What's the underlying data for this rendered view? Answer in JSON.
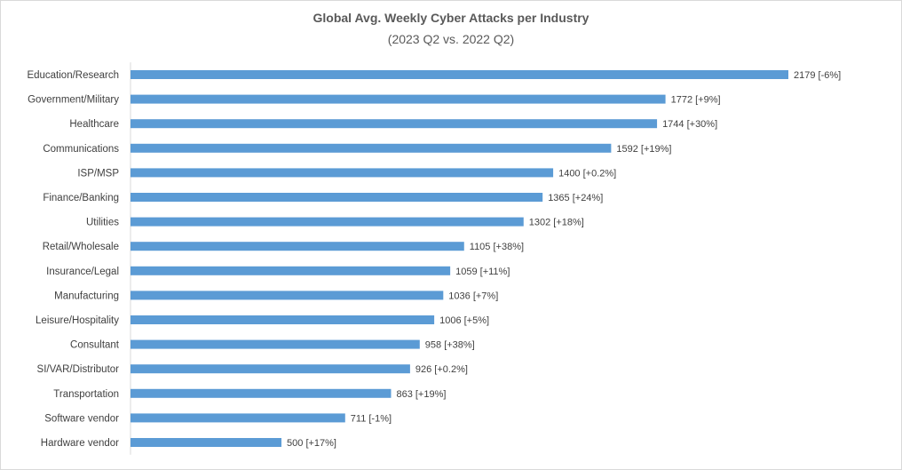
{
  "chart_data": {
    "type": "bar",
    "orientation": "horizontal",
    "title": "Global Avg. Weekly Cyber Attacks per Industry",
    "subtitle": "(2023 Q2 vs. 2022 Q2)",
    "categories": [
      "Education/Research",
      "Government/Military",
      "Healthcare",
      "Communications",
      "ISP/MSP",
      "Finance/Banking",
      "Utilities",
      "Retail/Wholesale",
      "Insurance/Legal",
      "Manufacturing",
      "Leisure/Hospitality",
      "Consultant",
      "SI/VAR/Distributor",
      "Transportation",
      "Software vendor",
      "Hardware vendor"
    ],
    "values": [
      2179,
      1772,
      1744,
      1592,
      1400,
      1365,
      1302,
      1105,
      1059,
      1036,
      1006,
      958,
      926,
      863,
      711,
      500
    ],
    "changes": [
      "-6%",
      "+9%",
      "+30%",
      "+19%",
      "+0.2%",
      "+24%",
      "+18%",
      "+38%",
      "+11%",
      "+7%",
      "+5%",
      "+38%",
      "+0.2%",
      "+19%",
      "-1%",
      "+17%"
    ],
    "data_labels": [
      "2179 [-6%]",
      "1772 [+9%]",
      "1744 [+30%]",
      "1592 [+19%]",
      "1400 [+0.2%]",
      "1365 [+24%]",
      "1302 [+18%]",
      "1105 [+38%]",
      "1059 [+11%]",
      "1036 [+7%]",
      "1006 [+5%]",
      "958 [+38%]",
      "926 [+0.2%]",
      "863 [+19%]",
      "711 [-1%]",
      "500 [+17%]"
    ],
    "xlim": [
      0,
      2179
    ],
    "grid": false,
    "legend": "none",
    "bar_color": "#5b9bd5",
    "axis_color": "#d9d9d9"
  }
}
